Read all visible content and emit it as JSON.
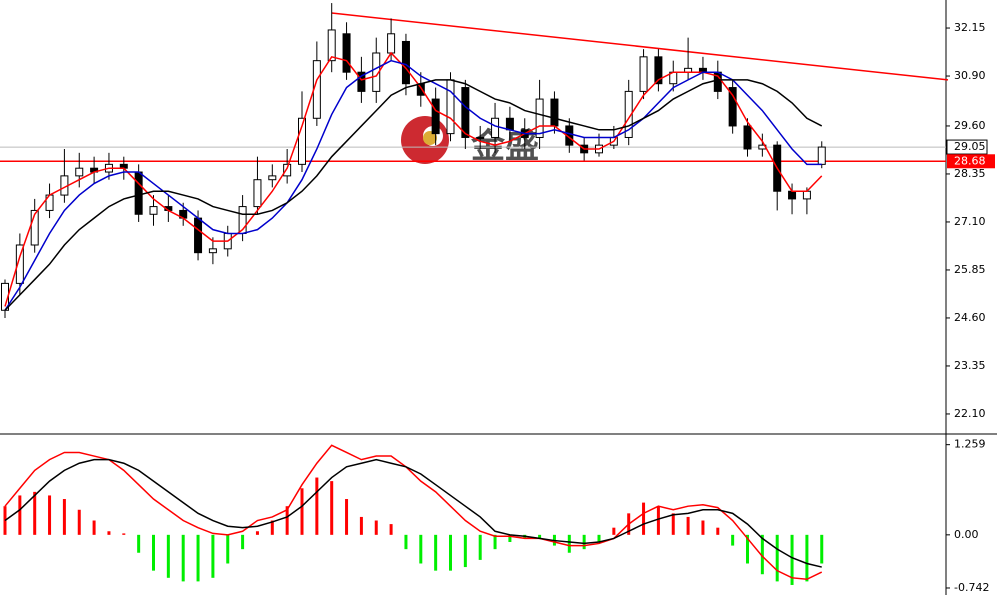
{
  "chart_data": [
    {
      "type": "candlestick",
      "open": [
        24.8,
        25.5,
        26.5,
        27.4,
        27.8,
        28.3,
        28.5,
        28.4,
        28.6,
        28.4,
        27.3,
        27.5,
        27.4,
        27.2,
        26.3,
        26.4,
        26.8,
        27.5,
        28.2,
        28.3,
        28.6,
        29.8,
        31.3,
        32.0,
        31.0,
        30.5,
        31.5,
        31.8,
        30.7,
        30.3,
        29.4,
        30.6,
        29.3,
        29.3,
        29.8,
        29.5,
        29.3,
        30.3,
        29.6,
        29.1,
        28.9,
        29.1,
        29.3,
        30.5,
        31.4,
        30.7,
        31.0,
        31.1,
        31.0,
        30.6,
        29.6,
        29.0,
        29.1,
        27.9,
        27.7,
        28.6
      ],
      "high": [
        25.6,
        26.8,
        27.7,
        28.1,
        29.0,
        28.9,
        28.8,
        28.9,
        28.8,
        28.6,
        27.8,
        27.8,
        27.6,
        27.4,
        26.7,
        27.0,
        27.8,
        28.8,
        28.6,
        29.0,
        30.5,
        31.8,
        32.8,
        32.3,
        31.4,
        31.9,
        32.4,
        32.0,
        31.0,
        30.6,
        31.0,
        30.8,
        29.6,
        30.2,
        30.1,
        29.8,
        30.8,
        30.5,
        29.8,
        29.3,
        29.4,
        29.6,
        30.8,
        31.6,
        31.6,
        31.3,
        31.9,
        31.4,
        31.3,
        30.8,
        29.8,
        29.4,
        29.2,
        28.1,
        28.0,
        29.2
      ],
      "low": [
        24.6,
        25.2,
        26.3,
        27.2,
        27.6,
        28.0,
        28.1,
        28.2,
        28.2,
        27.1,
        27.0,
        27.1,
        27.0,
        26.1,
        26.0,
        26.2,
        26.6,
        27.3,
        28.0,
        28.1,
        28.4,
        29.6,
        31.0,
        30.8,
        30.2,
        30.2,
        31.3,
        30.4,
        30.1,
        29.1,
        29.2,
        29.0,
        29.0,
        28.9,
        29.2,
        29.0,
        29.0,
        29.4,
        28.9,
        28.7,
        28.8,
        29.0,
        29.1,
        30.3,
        30.5,
        30.5,
        30.8,
        30.8,
        30.3,
        29.4,
        28.8,
        28.8,
        27.4,
        27.3,
        27.3,
        28.5
      ],
      "close": [
        25.5,
        26.5,
        27.4,
        27.8,
        28.3,
        28.5,
        28.4,
        28.6,
        28.5,
        27.3,
        27.5,
        27.4,
        27.2,
        26.3,
        26.4,
        26.8,
        27.5,
        28.2,
        28.3,
        28.6,
        29.8,
        31.3,
        32.1,
        31.0,
        30.5,
        31.5,
        32.0,
        30.7,
        30.4,
        29.4,
        30.8,
        29.3,
        29.3,
        29.8,
        29.5,
        29.3,
        30.3,
        29.6,
        29.1,
        28.9,
        29.1,
        29.3,
        30.5,
        31.4,
        30.7,
        31.0,
        31.1,
        31.0,
        30.5,
        29.6,
        29.0,
        29.1,
        27.9,
        27.7,
        27.9,
        29.05
      ],
      "lines": [
        {
          "color": "#ff0000",
          "values": [
            24.9,
            26.2,
            27.3,
            27.8,
            28.0,
            28.2,
            28.4,
            28.5,
            28.5,
            28.1,
            27.7,
            27.4,
            27.2,
            26.9,
            26.6,
            26.6,
            26.9,
            27.4,
            27.9,
            28.5,
            29.6,
            30.8,
            31.4,
            31.3,
            30.8,
            30.9,
            31.5,
            31.1,
            30.6,
            30.0,
            29.8,
            29.4,
            29.2,
            29.1,
            29.2,
            29.4,
            29.6,
            29.6,
            29.3,
            29.0,
            29.0,
            29.2,
            29.8,
            30.4,
            30.8,
            31.0,
            31.0,
            31.0,
            30.9,
            30.4,
            29.7,
            29.2,
            28.5,
            27.9,
            27.9,
            28.3
          ]
        },
        {
          "color": "#0000cc",
          "values": [
            24.8,
            25.4,
            26.1,
            26.8,
            27.4,
            27.8,
            28.1,
            28.3,
            28.4,
            28.4,
            28.1,
            27.8,
            27.5,
            27.2,
            26.9,
            26.8,
            26.8,
            26.9,
            27.2,
            27.6,
            28.2,
            29.0,
            29.9,
            30.6,
            30.9,
            31.1,
            31.3,
            31.2,
            30.9,
            30.7,
            30.5,
            30.1,
            29.8,
            29.6,
            29.5,
            29.4,
            29.4,
            29.5,
            29.4,
            29.3,
            29.3,
            29.3,
            29.5,
            29.8,
            30.2,
            30.6,
            30.8,
            31.0,
            31.0,
            30.8,
            30.4,
            30.0,
            29.5,
            29.0,
            28.6,
            28.6
          ]
        },
        {
          "color": "#000000",
          "values": [
            24.8,
            25.2,
            25.6,
            26.0,
            26.5,
            26.9,
            27.2,
            27.5,
            27.7,
            27.8,
            27.9,
            27.9,
            27.8,
            27.7,
            27.5,
            27.4,
            27.3,
            27.3,
            27.4,
            27.6,
            27.9,
            28.3,
            28.8,
            29.2,
            29.6,
            30.0,
            30.4,
            30.6,
            30.7,
            30.8,
            30.8,
            30.7,
            30.5,
            30.3,
            30.2,
            30.0,
            29.9,
            29.8,
            29.7,
            29.6,
            29.5,
            29.5,
            29.6,
            29.8,
            30.0,
            30.3,
            30.5,
            30.7,
            30.8,
            30.8,
            30.8,
            30.7,
            30.5,
            30.2,
            29.8,
            29.6
          ]
        }
      ],
      "trendline": {
        "x": [
          22,
          63.5
        ],
        "y": [
          32.54,
          30.8
        ],
        "color": "#ff0000"
      },
      "level": {
        "value": 28.68,
        "label": "28.68"
      },
      "bid": 29.05,
      "watermark": "金盛",
      "ylim": [
        21.63,
        32.88
      ],
      "yticks": [
        32.15,
        {
          "value": 30.9,
          "label": "30.90"
        },
        {
          "value": 29.6,
          "label": "29.60"
        },
        28.35,
        {
          "value": 27.1,
          "label": "27.10"
        },
        25.85,
        {
          "value": 24.6,
          "label": "24.60"
        },
        23.35,
        {
          "value": 22.1,
          "label": "22.10"
        }
      ]
    },
    {
      "type": "macd",
      "histogram": [
        0.4,
        0.55,
        0.6,
        0.55,
        0.5,
        0.35,
        0.2,
        0.05,
        0.02,
        -0.25,
        -0.5,
        -0.6,
        -0.65,
        -0.65,
        -0.6,
        -0.4,
        -0.2,
        0.05,
        0.2,
        0.4,
        0.65,
        0.8,
        0.75,
        0.5,
        0.25,
        0.2,
        0.15,
        -0.2,
        -0.4,
        -0.5,
        -0.5,
        -0.45,
        -0.35,
        -0.2,
        -0.1,
        -0.05,
        -0.05,
        -0.15,
        -0.25,
        -0.2,
        -0.1,
        0.1,
        0.3,
        0.45,
        0.4,
        0.3,
        0.25,
        0.2,
        0.1,
        -0.15,
        -0.4,
        -0.55,
        -0.65,
        -0.7,
        -0.65,
        -0.4
      ],
      "positive_color": "#ff0000",
      "negative_color": "#00ee00",
      "lines": [
        {
          "color": "#ff0000",
          "values": [
            0.4,
            0.65,
            0.9,
            1.05,
            1.15,
            1.15,
            1.1,
            1.05,
            0.9,
            0.7,
            0.5,
            0.35,
            0.2,
            0.1,
            0.02,
            0.0,
            0.05,
            0.2,
            0.25,
            0.35,
            0.7,
            1.0,
            1.25,
            1.15,
            1.05,
            1.1,
            1.1,
            0.95,
            0.75,
            0.6,
            0.4,
            0.2,
            0.05,
            -0.02,
            -0.02,
            -0.05,
            -0.05,
            -0.1,
            -0.15,
            -0.15,
            -0.12,
            -0.05,
            0.15,
            0.3,
            0.4,
            0.35,
            0.4,
            0.42,
            0.38,
            0.2,
            -0.05,
            -0.3,
            -0.5,
            -0.6,
            -0.62,
            -0.52
          ]
        },
        {
          "color": "#000000",
          "values": [
            0.2,
            0.35,
            0.55,
            0.75,
            0.9,
            1.0,
            1.05,
            1.05,
            1.0,
            0.9,
            0.75,
            0.6,
            0.45,
            0.3,
            0.2,
            0.12,
            0.1,
            0.12,
            0.18,
            0.25,
            0.4,
            0.6,
            0.8,
            0.95,
            1.0,
            1.05,
            1.0,
            0.95,
            0.85,
            0.7,
            0.55,
            0.4,
            0.25,
            0.05,
            0.0,
            -0.02,
            -0.05,
            -0.08,
            -0.1,
            -0.12,
            -0.1,
            -0.05,
            0.05,
            0.15,
            0.22,
            0.28,
            0.3,
            0.35,
            0.35,
            0.3,
            0.15,
            -0.05,
            -0.2,
            -0.32,
            -0.4,
            -0.45
          ]
        }
      ],
      "ylim": [
        -0.84,
        1.38
      ],
      "yticks": [
        1.259,
        {
          "value": 0,
          "label": "0.00"
        },
        -0.742
      ]
    }
  ]
}
